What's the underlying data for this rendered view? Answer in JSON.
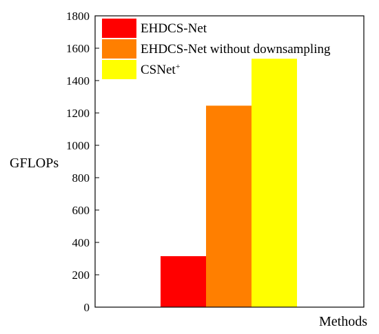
{
  "chart_data": {
    "type": "bar",
    "xlabel": "Methods",
    "ylabel": "GFLOPs",
    "ylim": [
      0,
      1800
    ],
    "yticks": [
      0,
      200,
      400,
      600,
      800,
      1000,
      1200,
      1400,
      1600,
      1800
    ],
    "grid": false,
    "legend_position": "top-left",
    "series": [
      {
        "name": "EHDCS-Net",
        "value": 315,
        "color": "#ff0000"
      },
      {
        "name": "EHDCS-Net without downsampling",
        "value": 1245,
        "color": "#ff7f00"
      },
      {
        "name": "CSNet",
        "name_superscript": "+",
        "value": 1535,
        "color": "#ffff00"
      }
    ]
  }
}
